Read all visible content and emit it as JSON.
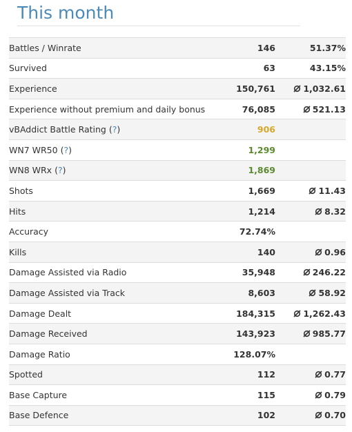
{
  "page": {
    "title": "This month"
  },
  "help_marker": "?",
  "average_icon": "average-symbol-icon",
  "colors": {
    "title": "#4d8ab6",
    "rating_yellow": "#d4a82a",
    "rating_green": "#5b8a2e",
    "help_link": "#4d8ab6"
  },
  "rows": [
    {
      "label": "Battles / Winrate",
      "value": "146",
      "avg": "51.37%",
      "avg_icon": false
    },
    {
      "label": "Survived",
      "value": "63",
      "avg": "43.15%",
      "avg_icon": false
    },
    {
      "label": "Experience",
      "value": "150,761",
      "avg": "1,032.61",
      "avg_icon": true
    },
    {
      "label": "Experience without premium and daily bonus",
      "value": "76,085",
      "avg": "521.13",
      "avg_icon": true
    },
    {
      "label": "vBAddict Battle Rating",
      "help": true,
      "value": "906",
      "value_color": "yellow",
      "avg": ""
    },
    {
      "label": "WN7 WR50",
      "help": true,
      "value": "1,299",
      "value_color": "green",
      "avg": ""
    },
    {
      "label": "WN8 WRx",
      "help": true,
      "value": "1,869",
      "value_color": "green",
      "avg": ""
    },
    {
      "label": "Shots",
      "value": "1,669",
      "avg": "11.43",
      "avg_icon": true
    },
    {
      "label": "Hits",
      "value": "1,214",
      "avg": "8.32",
      "avg_icon": true
    },
    {
      "label": "Accuracy",
      "value": "72.74%",
      "avg": ""
    },
    {
      "label": "Kills",
      "value": "140",
      "avg": "0.96",
      "avg_icon": true
    },
    {
      "label": "Damage Assisted via Radio",
      "value": "35,948",
      "avg": "246.22",
      "avg_icon": true
    },
    {
      "label": "Damage Assisted via Track",
      "value": "8,603",
      "avg": "58.92",
      "avg_icon": true
    },
    {
      "label": "Damage Dealt",
      "value": "184,315",
      "avg": "1,262.43",
      "avg_icon": true
    },
    {
      "label": "Damage Received",
      "value": "143,923",
      "avg": "985.77",
      "avg_icon": true
    },
    {
      "label": "Damage Ratio",
      "value": "128.07%",
      "avg": ""
    },
    {
      "label": "Spotted",
      "value": "112",
      "avg": "0.77",
      "avg_icon": true
    },
    {
      "label": "Base Capture",
      "value": "115",
      "avg": "0.79",
      "avg_icon": true
    },
    {
      "label": "Base Defence",
      "value": "102",
      "avg": "0.70",
      "avg_icon": true
    }
  ]
}
